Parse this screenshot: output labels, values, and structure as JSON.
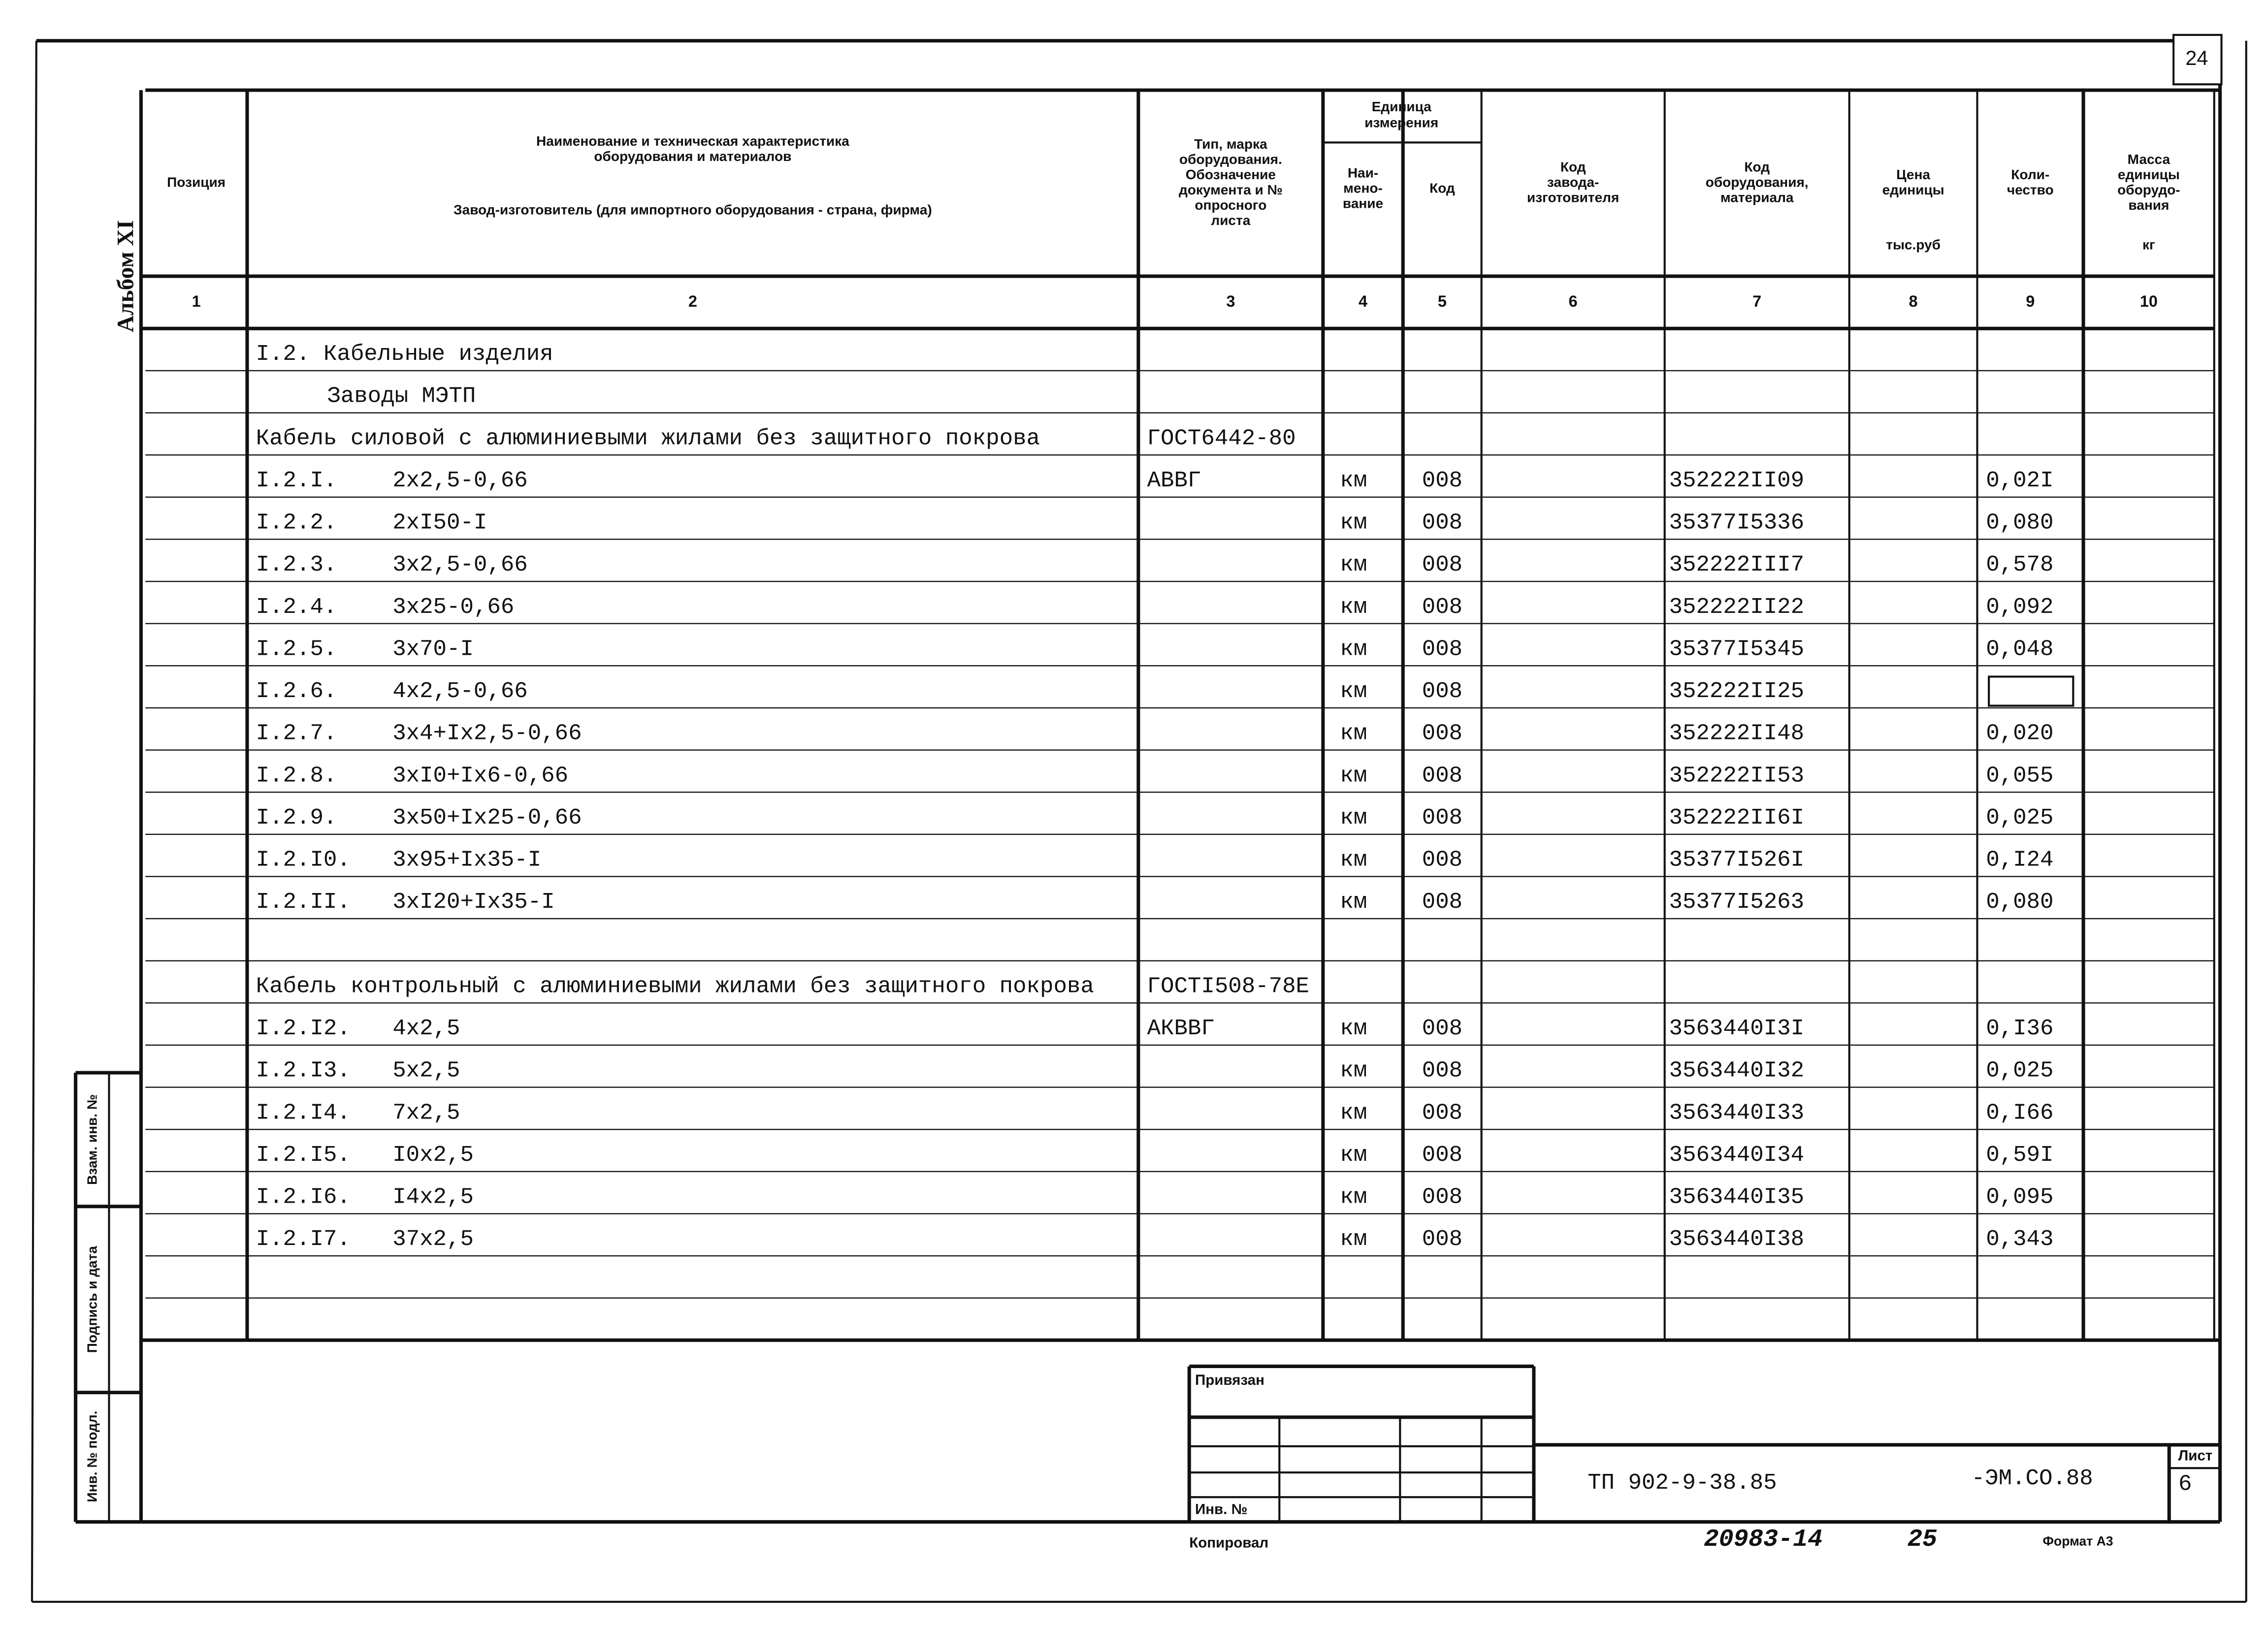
{
  "page_number": "24",
  "album": "Альбом XI",
  "header": {
    "columns": [
      {
        "lines": [
          "Позиция"
        ]
      },
      {
        "lines": [
          "Наименование и техническая характеристика",
          "оборудования и материалов"
        ],
        "sub": "Завод-изготовитель (для импортного оборудования - страна, фирма)"
      },
      {
        "lines": [
          "Тип, марка",
          "оборудования.",
          "Обозначение",
          "документа и №",
          "опросного",
          "листа"
        ]
      },
      {
        "lines": [
          "Наи-",
          "мено-",
          "вание"
        ]
      },
      {
        "lines": [
          "Код"
        ]
      },
      {
        "lines": [
          "Код",
          "завода-",
          "изготовителя"
        ]
      },
      {
        "lines": [
          "Код",
          "оборудования,",
          "материала"
        ]
      },
      {
        "lines": [
          "Цена",
          "единицы"
        ],
        "unit": "тыс.руб"
      },
      {
        "lines": [
          "Коли-",
          "чество"
        ]
      },
      {
        "lines": [
          "Масса",
          "единицы",
          "оборудо-",
          "вания"
        ],
        "unit": "кг"
      }
    ],
    "unit_group": [
      "Единица",
      "измерения"
    ],
    "numbers": [
      "1",
      "2",
      "3",
      "4",
      "5",
      "6",
      "7",
      "8",
      "9",
      "10"
    ]
  },
  "rows": [
    {
      "name": "I.2. Кабельные изделия"
    },
    {
      "name": "Заводы МЭТП"
    },
    {
      "name": "Кабель силовой с алюминиевыми жилами без защитного покрова",
      "type": "ГОСТ6442-80"
    },
    {
      "position": "I.2.I.",
      "name": "2x2,5-0,66",
      "type": "АВВГ",
      "unit": "км",
      "code": "008",
      "material_code": "352222II09",
      "quantity": "0,02I"
    },
    {
      "position": "I.2.2.",
      "name": "2xI50-I",
      "unit": "км",
      "code": "008",
      "material_code": "35377I5336",
      "quantity": "0,080"
    },
    {
      "position": "I.2.3.",
      "name": "3x2,5-0,66",
      "unit": "км",
      "code": "008",
      "material_code": "352222III7",
      "quantity": "0,578"
    },
    {
      "position": "I.2.4.",
      "name": "3x25-0,66",
      "unit": "км",
      "code": "008",
      "material_code": "352222II22",
      "quantity": "0,092"
    },
    {
      "position": "I.2.5.",
      "name": "3x70-I",
      "unit": "км",
      "code": "008",
      "material_code": "35377I5345",
      "quantity": "0,048"
    },
    {
      "position": "I.2.6.",
      "name": "4x2,5-0,66",
      "unit": "км",
      "code": "008",
      "material_code": "352222II25"
    },
    {
      "position": "I.2.7.",
      "name": "3x4+Ix2,5-0,66",
      "unit": "км",
      "code": "008",
      "material_code": "352222II48",
      "quantity": "0,020"
    },
    {
      "position": "I.2.8.",
      "name": "3xI0+Ix6-0,66",
      "unit": "км",
      "code": "008",
      "material_code": "352222II53",
      "quantity": "0,055"
    },
    {
      "position": "I.2.9.",
      "name": "3x50+Ix25-0,66",
      "unit": "км",
      "code": "008",
      "material_code": "352222II6I",
      "quantity": "0,025"
    },
    {
      "position": "I.2.I0.",
      "name": "3x95+Ix35-I",
      "unit": "км",
      "code": "008",
      "material_code": "35377I526I",
      "quantity": "0,I24"
    },
    {
      "position": "I.2.II.",
      "name": "3xI20+Ix35-I",
      "unit": "км",
      "code": "008",
      "material_code": "35377I5263",
      "quantity": "0,080"
    },
    {
      "name": "Кабель контрольный с алюминиевыми жилами без защитного покрова",
      "type": "ГОСТI508-78E"
    },
    {
      "position": "I.2.I2.",
      "name": "4x2,5",
      "type": "АКВВГ",
      "unit": "км",
      "code": "008",
      "material_code": "3563440I3I",
      "quantity": "0,I36"
    },
    {
      "position": "I.2.I3.",
      "name": "5x2,5",
      "unit": "км",
      "code": "008",
      "material_code": "3563440I32",
      "quantity": "0,025"
    },
    {
      "position": "I.2.I4.",
      "name": "7x2,5",
      "unit": "км",
      "code": "008",
      "material_code": "3563440I33",
      "quantity": "0,I66"
    },
    {
      "position": "I.2.I5.",
      "name": "I0x2,5",
      "unit": "км",
      "code": "008",
      "material_code": "3563440I34",
      "quantity": "0,59I"
    },
    {
      "position": "I.2.I6.",
      "name": "I4x2,5",
      "unit": "км",
      "code": "008",
      "material_code": "3563440I35",
      "quantity": "0,095"
    },
    {
      "position": "I.2.I7.",
      "name": "37x2,5",
      "unit": "км",
      "code": "008",
      "material_code": "3563440I38",
      "quantity": "0,343"
    }
  ],
  "side": {
    "replaced": "Взам. инв. №",
    "signature": "Подпись и дата",
    "original": "Инв. № подл."
  },
  "stamp": {
    "attached": "Привязан",
    "inv": "Инв. №",
    "copied": "Копировал",
    "doc": "ТП 902-9-38.85",
    "code": "-ЭМ.СО.88",
    "sheet_label": "Лист",
    "sheet": "6",
    "archive": "20983-14",
    "archive_sheet": "25",
    "format": "Формат А3"
  }
}
